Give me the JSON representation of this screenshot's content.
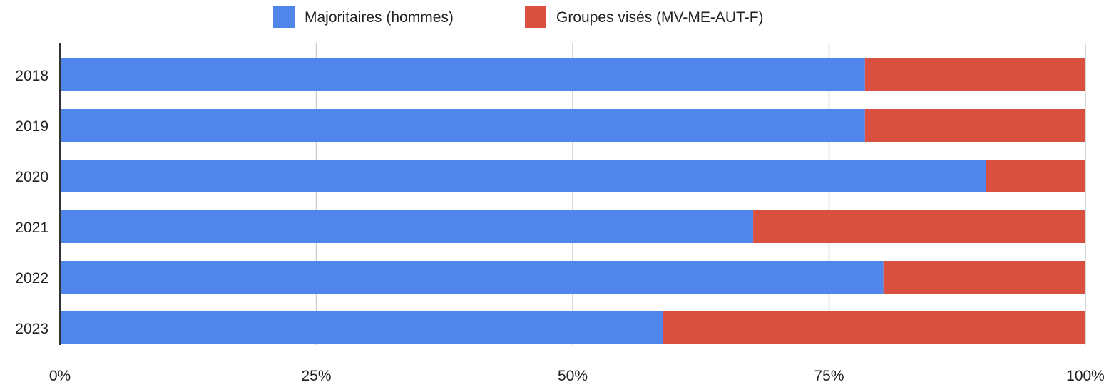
{
  "chart_data": {
    "type": "bar",
    "orientation": "horizontal",
    "stacked": "percent",
    "categories": [
      "2018",
      "2019",
      "2020",
      "2021",
      "2022",
      "2023"
    ],
    "series": [
      {
        "name": "Majoritaires (hommes)",
        "color": "#5086EC",
        "values": [
          78.5,
          78.5,
          90.3,
          67.6,
          80.3,
          58.8
        ]
      },
      {
        "name": "Groupes visés (MV-ME-AUT-F)",
        "color": "#D95040",
        "values": [
          21.5,
          21.5,
          9.7,
          32.4,
          19.7,
          41.2
        ]
      }
    ],
    "x_ticks": [
      "0%",
      "25%",
      "50%",
      "75%",
      "100%"
    ],
    "xlim": [
      0,
      100
    ],
    "grid": true,
    "legend_position": "top"
  }
}
